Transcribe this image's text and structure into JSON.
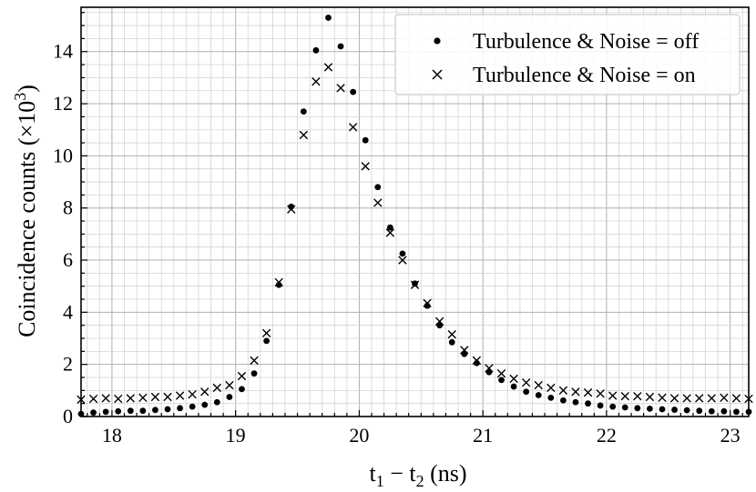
{
  "chart_data": {
    "type": "scatter",
    "xlabel": {
      "main": "t",
      "sub1": "1",
      "mid": " − t",
      "sub2": "2",
      "unit": " (ns)"
    },
    "ylabel": {
      "main": "Coincidence counts (×10",
      "sup": "3",
      "end": ")"
    },
    "xlim": [
      17.75,
      23.15
    ],
    "ylim": [
      0,
      15.7
    ],
    "xticks": [
      18,
      19,
      20,
      21,
      22,
      23
    ],
    "yticks": [
      0,
      2,
      4,
      6,
      8,
      10,
      12,
      14
    ],
    "grid": true,
    "legend_position": "top-right",
    "series": [
      {
        "name": "Turbulence & Noise = off",
        "marker": "dot",
        "color": "#000000",
        "points": [
          [
            17.75,
            0.1
          ],
          [
            17.85,
            0.15
          ],
          [
            17.95,
            0.18
          ],
          [
            18.05,
            0.2
          ],
          [
            18.15,
            0.22
          ],
          [
            18.25,
            0.22
          ],
          [
            18.35,
            0.25
          ],
          [
            18.45,
            0.28
          ],
          [
            18.55,
            0.32
          ],
          [
            18.65,
            0.38
          ],
          [
            18.75,
            0.45
          ],
          [
            18.85,
            0.55
          ],
          [
            18.95,
            0.75
          ],
          [
            19.05,
            1.05
          ],
          [
            19.15,
            1.65
          ],
          [
            19.25,
            2.9
          ],
          [
            19.35,
            5.05
          ],
          [
            19.45,
            8.05
          ],
          [
            19.55,
            11.7
          ],
          [
            19.65,
            14.05
          ],
          [
            19.75,
            15.3
          ],
          [
            19.85,
            14.2
          ],
          [
            19.95,
            12.45
          ],
          [
            20.05,
            10.6
          ],
          [
            20.15,
            8.8
          ],
          [
            20.25,
            7.25
          ],
          [
            20.35,
            6.25
          ],
          [
            20.45,
            5.1
          ],
          [
            20.55,
            4.25
          ],
          [
            20.65,
            3.5
          ],
          [
            20.75,
            2.85
          ],
          [
            20.85,
            2.4
          ],
          [
            20.95,
            2.05
          ],
          [
            21.05,
            1.7
          ],
          [
            21.15,
            1.4
          ],
          [
            21.25,
            1.15
          ],
          [
            21.35,
            0.95
          ],
          [
            21.45,
            0.82
          ],
          [
            21.55,
            0.72
          ],
          [
            21.65,
            0.62
          ],
          [
            21.75,
            0.55
          ],
          [
            21.85,
            0.5
          ],
          [
            21.95,
            0.42
          ],
          [
            22.05,
            0.38
          ],
          [
            22.15,
            0.35
          ],
          [
            22.25,
            0.32
          ],
          [
            22.35,
            0.3
          ],
          [
            22.45,
            0.28
          ],
          [
            22.55,
            0.26
          ],
          [
            22.65,
            0.24
          ],
          [
            22.75,
            0.22
          ],
          [
            22.85,
            0.2
          ],
          [
            22.95,
            0.2
          ],
          [
            23.05,
            0.18
          ],
          [
            23.15,
            0.18
          ]
        ]
      },
      {
        "name": "Turbulence & Noise = on",
        "marker": "cross",
        "color": "#000000",
        "points": [
          [
            17.75,
            0.65
          ],
          [
            17.85,
            0.68
          ],
          [
            17.95,
            0.7
          ],
          [
            18.05,
            0.68
          ],
          [
            18.15,
            0.7
          ],
          [
            18.25,
            0.72
          ],
          [
            18.35,
            0.75
          ],
          [
            18.45,
            0.75
          ],
          [
            18.55,
            0.8
          ],
          [
            18.65,
            0.85
          ],
          [
            18.75,
            0.95
          ],
          [
            18.85,
            1.1
          ],
          [
            18.95,
            1.2
          ],
          [
            19.05,
            1.55
          ],
          [
            19.15,
            2.15
          ],
          [
            19.25,
            3.2
          ],
          [
            19.35,
            5.15
          ],
          [
            19.45,
            7.95
          ],
          [
            19.55,
            10.8
          ],
          [
            19.65,
            12.85
          ],
          [
            19.75,
            13.4
          ],
          [
            19.85,
            12.6
          ],
          [
            19.95,
            11.1
          ],
          [
            20.05,
            9.6
          ],
          [
            20.15,
            8.2
          ],
          [
            20.25,
            7.05
          ],
          [
            20.35,
            6.0
          ],
          [
            20.45,
            5.05
          ],
          [
            20.55,
            4.35
          ],
          [
            20.65,
            3.65
          ],
          [
            20.75,
            3.15
          ],
          [
            20.85,
            2.55
          ],
          [
            20.95,
            2.15
          ],
          [
            21.05,
            1.85
          ],
          [
            21.15,
            1.65
          ],
          [
            21.25,
            1.45
          ],
          [
            21.35,
            1.3
          ],
          [
            21.45,
            1.2
          ],
          [
            21.55,
            1.1
          ],
          [
            21.65,
            1.0
          ],
          [
            21.75,
            0.95
          ],
          [
            21.85,
            0.92
          ],
          [
            21.95,
            0.88
          ],
          [
            22.05,
            0.8
          ],
          [
            22.15,
            0.78
          ],
          [
            22.25,
            0.78
          ],
          [
            22.35,
            0.75
          ],
          [
            22.45,
            0.72
          ],
          [
            22.55,
            0.7
          ],
          [
            22.65,
            0.7
          ],
          [
            22.75,
            0.7
          ],
          [
            22.85,
            0.7
          ],
          [
            22.95,
            0.72
          ],
          [
            23.05,
            0.7
          ],
          [
            23.15,
            0.68
          ]
        ]
      }
    ]
  }
}
